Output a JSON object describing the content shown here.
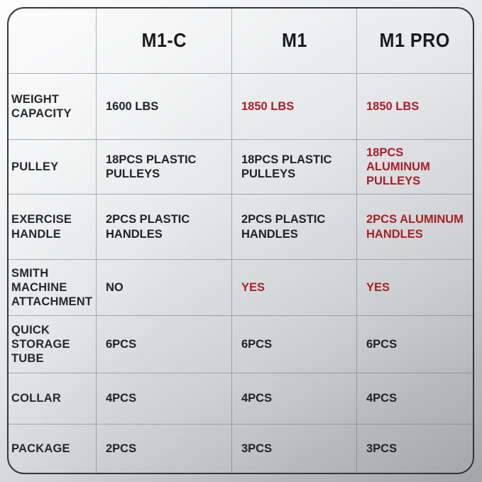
{
  "table": {
    "title": "product-comparison",
    "columns": [
      "M1-C",
      "M1",
      "M1 PRO"
    ],
    "rows": [
      {
        "label": "WEIGHT\nCAPACITY",
        "cells": [
          {
            "text": "1600 LBS",
            "highlight": false
          },
          {
            "text": "1850 LBS",
            "highlight": true
          },
          {
            "text": "1850 LBS",
            "highlight": true
          }
        ]
      },
      {
        "label": "PULLEY",
        "cells": [
          {
            "text": "18PCS PLASTIC\nPULLEYS",
            "highlight": false
          },
          {
            "text": "18PCS PLASTIC\nPULLEYS",
            "highlight": false
          },
          {
            "text": "18PCS\nALUMINUM PULLEYS",
            "highlight": true
          }
        ]
      },
      {
        "label": "EXERCISE\nHANDLE",
        "cells": [
          {
            "text": "2PCS PLASTIC\nHANDLES",
            "highlight": false
          },
          {
            "text": "2PCS PLASTIC\nHANDLES",
            "highlight": false
          },
          {
            "text": "2PCS ALUMINUM\nHANDLES",
            "highlight": true
          }
        ]
      },
      {
        "label": "SMITH MACHINE\nATTACHMENT",
        "cells": [
          {
            "text": "NO",
            "highlight": false
          },
          {
            "text": "YES",
            "highlight": true
          },
          {
            "text": "YES",
            "highlight": true
          }
        ]
      },
      {
        "label": "QUICK\nSTORAGE TUBE",
        "cells": [
          {
            "text": "6PCS",
            "highlight": false
          },
          {
            "text": "6PCS",
            "highlight": false
          },
          {
            "text": "6PCS",
            "highlight": false
          }
        ]
      },
      {
        "label": "COLLAR",
        "cells": [
          {
            "text": "4PCS",
            "highlight": false
          },
          {
            "text": "4PCS",
            "highlight": false
          },
          {
            "text": "4PCS",
            "highlight": false
          }
        ]
      },
      {
        "label": "PACKAGE",
        "cells": [
          {
            "text": "2PCS",
            "highlight": false
          },
          {
            "text": "3PCS",
            "highlight": false
          },
          {
            "text": "3PCS",
            "highlight": false
          }
        ]
      }
    ],
    "colors": {
      "highlight_text": "#a81f27",
      "normal_text": "#212225",
      "header_text": "#1a1b1d",
      "grid_line": "#6e747c",
      "outer_border": "#33363b"
    }
  }
}
